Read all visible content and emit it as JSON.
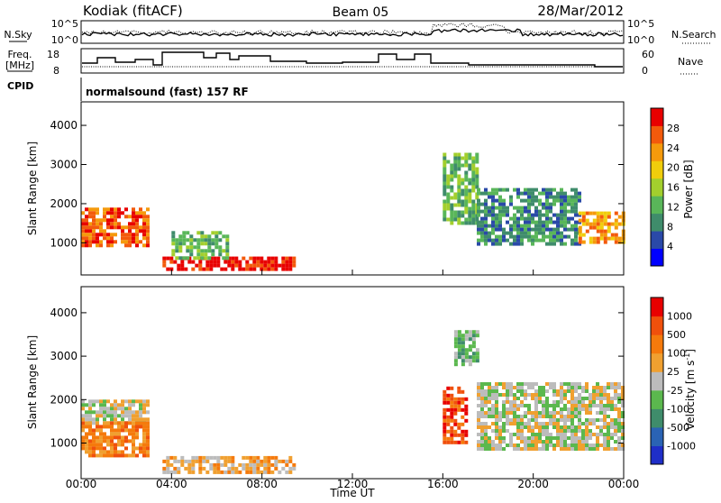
{
  "header": {
    "station": "Kodiak (fitACF)",
    "beam": "Beam 05",
    "date": "28/Mar/2012"
  },
  "noise_panel": {
    "left_label": "N.Sky",
    "right_label": "N.Search",
    "ticks": [
      "10^5",
      "10^0"
    ]
  },
  "freq_panel": {
    "left_label_line1": "Freq.",
    "left_label_line2": "[MHz]",
    "left_ticks": [
      "18",
      "8"
    ],
    "right_label": "Nave",
    "right_ticks": [
      "60",
      "0"
    ]
  },
  "cpid": {
    "label": "CPID",
    "value": "normalsound (fast) 157 RF"
  },
  "chart_data": [
    {
      "type": "heatmap",
      "name": "power",
      "ylabel": "Slant Range [km]",
      "yticks": [
        1000,
        2000,
        3000,
        4000
      ],
      "ylim": [
        180,
        4600
      ],
      "xlim": [
        0,
        24
      ],
      "colorbar_label": "Power [dB]",
      "colorbar_ticks": [
        "28",
        "24",
        "20",
        "16",
        "12",
        "8",
        "4"
      ],
      "colors": [
        "#0000ff",
        "#2a49a8",
        "#3f8c6b",
        "#59b659",
        "#a3cf2d",
        "#f0cd0c",
        "#f59a0c",
        "#f35a0c",
        "#e80000"
      ],
      "regions": [
        {
          "t0": 0.0,
          "t1": 3.0,
          "r0": 900,
          "r1": 1900,
          "level": 7
        },
        {
          "t0": 3.6,
          "t1": 9.5,
          "r0": 300,
          "r1": 650,
          "level": 8
        },
        {
          "t0": 4.0,
          "t1": 6.5,
          "r0": 650,
          "r1": 1300,
          "level": 3
        },
        {
          "t0": 16.0,
          "t1": 17.5,
          "r0": 1500,
          "r1": 3300,
          "level": 3
        },
        {
          "t0": 17.5,
          "t1": 22.0,
          "r0": 1000,
          "r1": 2400,
          "level": 2
        },
        {
          "t0": 22.0,
          "t1": 24.0,
          "r0": 1000,
          "r1": 1800,
          "level": 6
        }
      ]
    },
    {
      "type": "heatmap",
      "name": "velocity",
      "ylabel": "Slant Range [km]",
      "yticks": [
        1000,
        2000,
        3000,
        4000
      ],
      "ylim": [
        180,
        4600
      ],
      "xlim": [
        0,
        24
      ],
      "xticks": [
        "00:00",
        "04:00",
        "08:00",
        "12:00",
        "16:00",
        "20:00",
        "00:00"
      ],
      "xlabel": "Time UT",
      "colorbar_label": "Velocity [m s",
      "colorbar_label_sup": "-1",
      "colorbar_label_end": "]",
      "colorbar_ticks": [
        "1000",
        "500",
        "100",
        "25",
        "-25",
        "-100",
        "-500",
        "-1000"
      ],
      "colors": [
        "#1f2ec8",
        "#2a63b4",
        "#3f8c6b",
        "#5bb84e",
        "#bcbcbc",
        "#f0a030",
        "#f57a0c",
        "#f0500c",
        "#e80000"
      ],
      "regions": [
        {
          "t0": 0.0,
          "t1": 3.0,
          "r0": 1500,
          "r1": 2000,
          "level": 4
        },
        {
          "t0": 0.0,
          "t1": 3.0,
          "r0": 700,
          "r1": 1500,
          "level": 6
        },
        {
          "t0": 3.6,
          "t1": 9.5,
          "r0": 300,
          "r1": 700,
          "level": 5
        },
        {
          "t0": 16.0,
          "t1": 17.0,
          "r0": 1000,
          "r1": 2300,
          "level": 7
        },
        {
          "t0": 16.5,
          "t1": 17.5,
          "r0": 2800,
          "r1": 3600,
          "level": 3
        },
        {
          "t0": 17.5,
          "t1": 24.0,
          "r0": 900,
          "r1": 2400,
          "level": 4
        }
      ]
    }
  ]
}
